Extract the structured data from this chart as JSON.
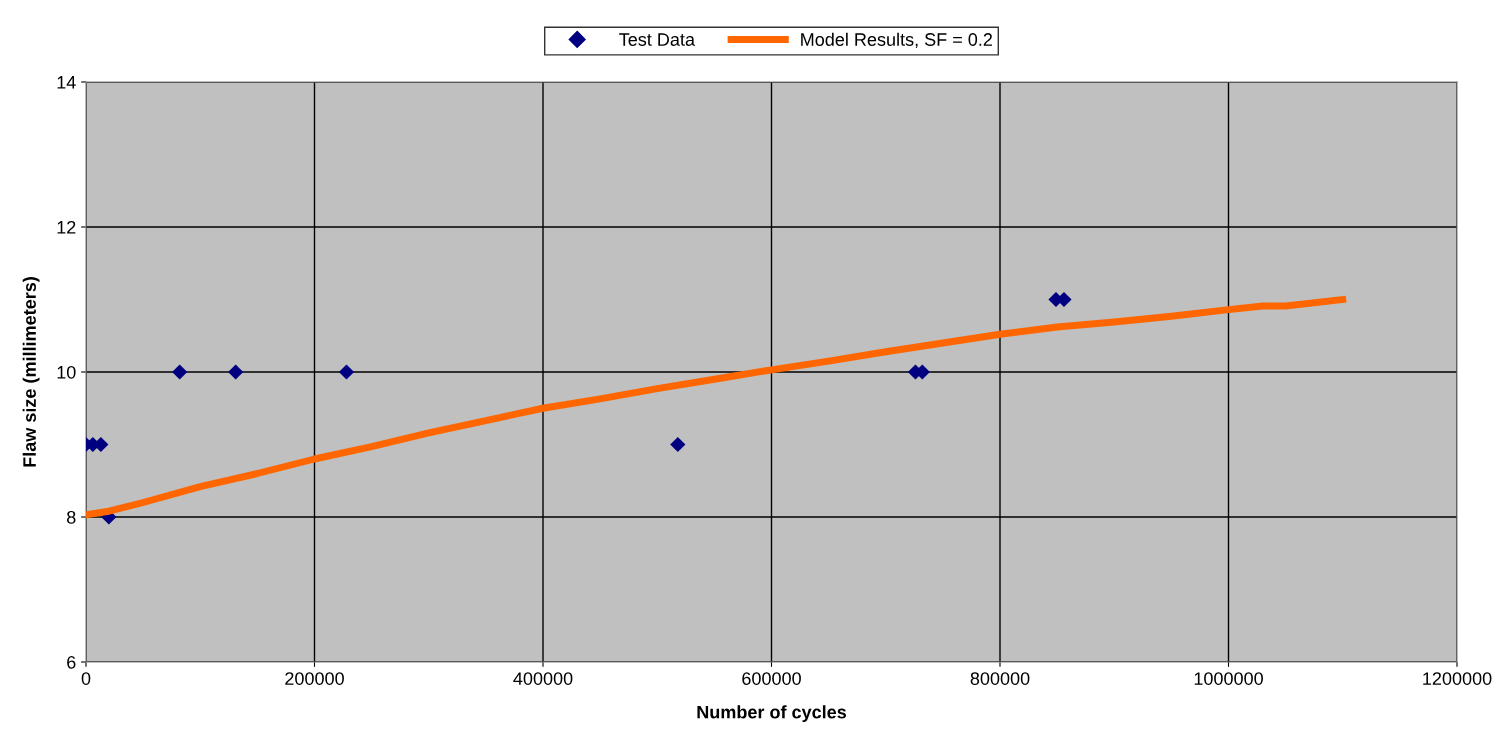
{
  "chart_data": {
    "type": "scatter",
    "xlabel": "Number of cycles",
    "ylabel": "Flaw size (millimeters)",
    "xlim": [
      0,
      1200000
    ],
    "xticks": [
      0,
      200000,
      400000,
      600000,
      800000,
      1000000,
      1200000
    ],
    "ylim": [
      6,
      14
    ],
    "yticks": [
      6,
      8,
      10,
      12,
      14
    ],
    "grid": true,
    "legend": "top",
    "series": [
      {
        "name": "Test Data",
        "marker": "diamond",
        "color": "#000080",
        "x": [
          0,
          6000,
          13000,
          20000,
          82000,
          131000,
          228000,
          518000,
          726000,
          732000,
          849000,
          856000
        ],
        "values": [
          9,
          9,
          9,
          8,
          10,
          10,
          10,
          9,
          10,
          10,
          11,
          11
        ]
      },
      {
        "name": "Model Results, SF = 0.2",
        "type": "line",
        "marker": "none",
        "color": "#ff6600",
        "x": [
          0,
          20000,
          50000,
          100000,
          150000,
          200000,
          250000,
          300000,
          350000,
          400000,
          450000,
          500000,
          550000,
          600000,
          650000,
          700000,
          750000,
          800000,
          850000,
          900000,
          950000,
          1000000,
          1030000,
          1050000,
          1100000
        ],
        "values": [
          8.03,
          8.08,
          8.2,
          8.42,
          8.6,
          8.8,
          8.97,
          9.16,
          9.33,
          9.5,
          9.63,
          9.77,
          9.9,
          10.03,
          10.15,
          10.28,
          10.4,
          10.52,
          10.62,
          10.69,
          10.77,
          10.86,
          10.91,
          10.91,
          11.0
        ]
      }
    ]
  }
}
